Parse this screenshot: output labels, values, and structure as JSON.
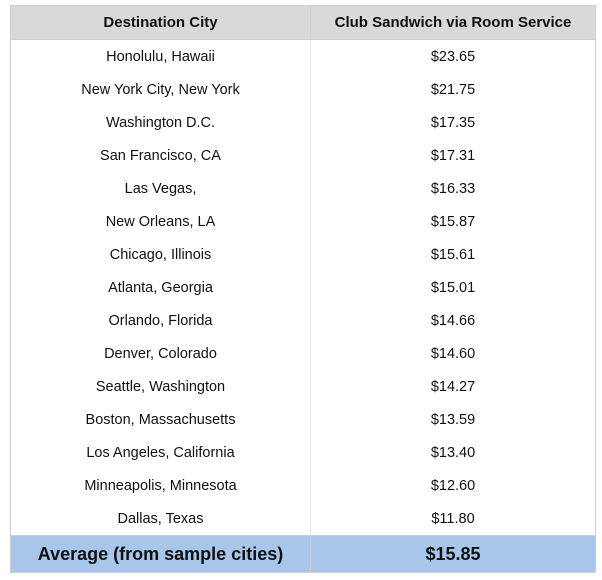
{
  "table": {
    "headers": {
      "city": "Destination City",
      "price": "Club Sandwich via Room Service"
    },
    "rows": [
      {
        "city": "Honolulu, Hawaii",
        "price": "$23.65"
      },
      {
        "city": "New York City, New York",
        "price": "$21.75"
      },
      {
        "city": "Washington D.C.",
        "price": "$17.35"
      },
      {
        "city": "San Francisco, CA",
        "price": "$17.31"
      },
      {
        "city": "Las Vegas,",
        "price": "$16.33"
      },
      {
        "city": "New Orleans, LA",
        "price": "$15.87"
      },
      {
        "city": "Chicago, Illinois",
        "price": "$15.61"
      },
      {
        "city": "Atlanta, Georgia",
        "price": "$15.01"
      },
      {
        "city": "Orlando, Florida",
        "price": "$14.66"
      },
      {
        "city": "Denver, Colorado",
        "price": "$14.60"
      },
      {
        "city": "Seattle, Washington",
        "price": "$14.27"
      },
      {
        "city": "Boston, Massachusetts",
        "price": "$13.59"
      },
      {
        "city": "Los Angeles, California",
        "price": "$13.40"
      },
      {
        "city": "Minneapolis, Minnesota",
        "price": "$12.60"
      },
      {
        "city": "Dallas, Texas",
        "price": "$11.80"
      }
    ],
    "footer": {
      "label": "Average (from sample cities)",
      "value": "$15.85"
    }
  },
  "colors": {
    "header_bg": "#d9d9d9",
    "footer_bg": "#a8c6ea"
  }
}
